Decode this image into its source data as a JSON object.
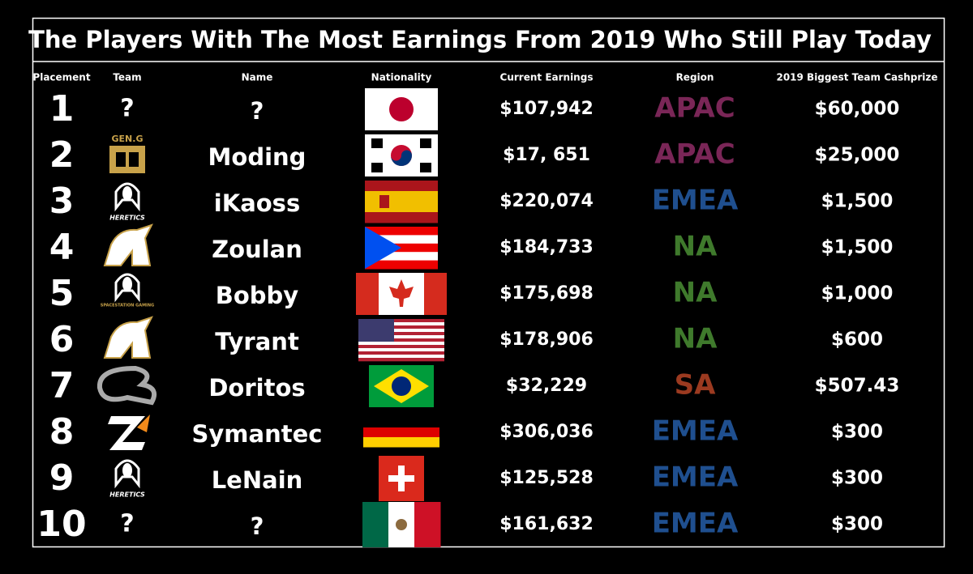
{
  "header": {
    "title": "The Players With The Most Earnings From 2019 Who Still Play Today"
  },
  "table": {
    "columns": [
      "Placement",
      "Team",
      "Name",
      "Nationality",
      "Current Earnings",
      "Region",
      "2019 Biggest Team Cashprize"
    ],
    "rows": [
      {
        "placement": "1",
        "team": "?",
        "name": "?",
        "earnings": "$107,942",
        "region": "APAC",
        "region_color": "#7a2657",
        "cashprize": "$60,000"
      },
      {
        "placement": "2",
        "team": "GEN.G",
        "name": "Moding",
        "earnings": "$17, 651",
        "region": "APAC",
        "region_color": "#7a2657",
        "cashprize": "$25,000"
      },
      {
        "placement": "3",
        "team": "HERETICS",
        "name": "iKaoss",
        "earnings": "$220,074",
        "region": "EMEA",
        "region_color": "#1f4f8f",
        "cashprize": "$1,500"
      },
      {
        "placement": "4",
        "name": "Zoulan",
        "earnings": "$184,733",
        "region": "NA",
        "region_color": "#3f7a2c",
        "cashprize": "$1,500"
      },
      {
        "placement": "5",
        "team": "SPACESTATION GAMING",
        "name": "Bobby",
        "earnings": "$175,698",
        "region": "NA",
        "region_color": "#3f7a2c",
        "cashprize": "$1,000"
      },
      {
        "placement": "6",
        "name": "Tyrant",
        "earnings": "$178,906",
        "region": "NA",
        "region_color": "#3f7a2c",
        "cashprize": "$600"
      },
      {
        "placement": "7",
        "name": "Doritos",
        "earnings": "$32,229",
        "region": "SA",
        "region_color": "#9b3a20",
        "cashprize": "$507.43"
      },
      {
        "placement": "8",
        "name": "Symantec",
        "earnings": "$306,036",
        "region": "EMEA",
        "region_color": "#1f4f8f",
        "cashprize": "$300"
      },
      {
        "placement": "9",
        "team": "HERETICS",
        "name": "LeNain",
        "earnings": "$125,528",
        "region": "EMEA",
        "region_color": "#1f4f8f",
        "cashprize": "$300"
      },
      {
        "placement": "10",
        "team": "?",
        "name": "?",
        "earnings": "$161,632",
        "region": "EMEA",
        "region_color": "#1f4f8f",
        "cashprize": "$300"
      }
    ]
  }
}
